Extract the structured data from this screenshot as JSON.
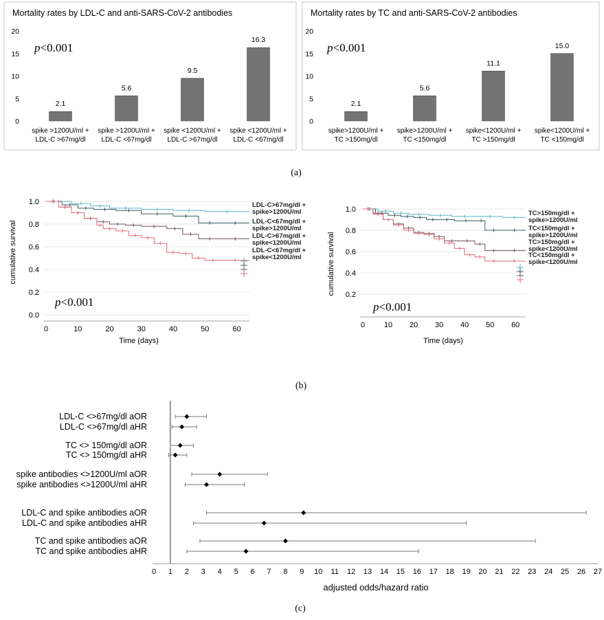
{
  "colors": {
    "bar": "#737373",
    "panel_border": "#c8c8c8",
    "axis": "#9a9a9a",
    "teal": "#5bb5c1",
    "dark": "#375a5f",
    "purple": "#6e5560",
    "pink": "#e06a7d",
    "forest": "#555555"
  },
  "panel_labels": {
    "a": "(a)",
    "b": "(b)",
    "c": "(c)"
  },
  "chart_data": [
    {
      "type": "bar",
      "title": "Mortality rates by LDL-C and anti-SARS-CoV-2 antibodies",
      "annotation": {
        "italic": "p",
        "rest": "<0.001"
      },
      "categories": [
        [
          "spike >1200U/ml +",
          "LDL-C >67mg/dl"
        ],
        [
          "spike >1200U/ml +",
          "LDL-C <67mg/dl"
        ],
        [
          "spike <1200U/ml +",
          "LDL-C >67mg/dl"
        ],
        [
          "spike <1200U/ml +",
          "LDL-C <67mg/dl"
        ]
      ],
      "values": [
        2.1,
        5.6,
        9.5,
        16.3
      ],
      "labels": [
        "2.1",
        "5.6",
        "9.5",
        "16.3"
      ],
      "ylim": [
        0,
        20
      ],
      "yticks": [
        0,
        5,
        10,
        15,
        20
      ]
    },
    {
      "type": "bar",
      "title": "Mortality rates by TC and anti-SARS-CoV-2 antibodies",
      "annotation": {
        "italic": "p",
        "rest": "<0.001"
      },
      "categories": [
        [
          "spike>1200U/ml +",
          "TC >150mg/dl"
        ],
        [
          "spike>1200U/ml +",
          "TC <150mg/dl"
        ],
        [
          "spike<1200U/ml +",
          "TC >150mg/dl"
        ],
        [
          "spike<1200U/ml +",
          "TC <150mg/dl"
        ]
      ],
      "values": [
        2.1,
        5.6,
        11.1,
        15.0
      ],
      "labels": [
        "2.1",
        "5.6",
        "11.1",
        "15.0"
      ],
      "ylim": [
        0,
        20
      ],
      "yticks": [
        0,
        5,
        10,
        15,
        20
      ]
    },
    {
      "type": "line",
      "xlabel": "Time (days)",
      "ylabel": "cumulative survival",
      "annotation": {
        "italic": "p",
        "rest": "<0.001"
      },
      "xlim": [
        0,
        64
      ],
      "ylim": [
        0,
        1.0
      ],
      "xticks": [
        0,
        10,
        20,
        30,
        40,
        50,
        60
      ],
      "yticks": [
        0.0,
        0.2,
        0.4,
        0.6,
        0.8,
        1.0
      ],
      "ytick_labels": [
        "0.0",
        "0.2",
        "0.4",
        "0.6",
        "0.8",
        "1.0"
      ],
      "series": [
        {
          "name": "LDL-C>67mg/dl + spike>1200U/ml",
          "label_lines": [
            "LDL-C>67mg/dl +",
            "spike>1200U/ml"
          ],
          "color": "#5bb5c1",
          "x": [
            0,
            8,
            14,
            20,
            30,
            40,
            50,
            64
          ],
          "y": [
            1.0,
            0.98,
            0.96,
            0.94,
            0.93,
            0.92,
            0.91,
            0.91
          ]
        },
        {
          "name": "LDL-C<67mg/dl + spike>1200U/ml",
          "label_lines": [
            "LDL-C<67mg/dl +",
            "spike>1200U/ml"
          ],
          "color": "#375a5f",
          "x": [
            0,
            5,
            10,
            15,
            22,
            30,
            40,
            48,
            55,
            64
          ],
          "y": [
            1.0,
            0.97,
            0.94,
            0.93,
            0.92,
            0.89,
            0.87,
            0.81,
            0.81,
            0.81
          ]
        },
        {
          "name": "LDL-C>67mg/dl + spike<1200U/ml",
          "label_lines": [
            "LDL-C>67mg/dl +",
            "spike<1200U/ml"
          ],
          "color": "#6e5560",
          "x": [
            0,
            4,
            8,
            12,
            16,
            20,
            25,
            30,
            38,
            43,
            48,
            55,
            64
          ],
          "y": [
            1.0,
            0.95,
            0.9,
            0.85,
            0.82,
            0.8,
            0.79,
            0.78,
            0.76,
            0.71,
            0.67,
            0.67,
            0.67
          ]
        },
        {
          "name": "LDL-C<67mg/dl + spike<1200U/ml",
          "label_lines": [
            "LDL-C<67mg/dl +",
            "spike<1200U/ml"
          ],
          "color": "#e06a7d",
          "x": [
            0,
            4,
            8,
            12,
            16,
            18,
            22,
            26,
            30,
            34,
            38,
            42,
            46,
            50,
            55,
            64
          ],
          "y": [
            1.0,
            0.95,
            0.9,
            0.85,
            0.79,
            0.76,
            0.74,
            0.7,
            0.68,
            0.63,
            0.55,
            0.54,
            0.5,
            0.48,
            0.48,
            0.48
          ]
        }
      ]
    },
    {
      "type": "line",
      "xlabel": "Time (days)",
      "ylabel": "cumulative survival",
      "annotation": {
        "italic": "p",
        "rest": "<0.001"
      },
      "xlim": [
        0,
        64
      ],
      "ylim": [
        0,
        1.0
      ],
      "xticks": [
        0,
        10,
        20,
        30,
        40,
        50,
        60
      ],
      "yticks": [
        0.2,
        0.4,
        0.6,
        0.8,
        1.0
      ],
      "ytick_labels": [
        "0.2",
        "0.4",
        "0.6",
        "0.8",
        "1.0"
      ],
      "series": [
        {
          "name": "TC>150mg/dl + spike>1200U/ml",
          "label_lines": [
            "TC>150mg/dl +",
            "spike>1200U/ml"
          ],
          "color": "#5bb5c1",
          "x": [
            0,
            6,
            12,
            18,
            26,
            35,
            45,
            55,
            64
          ],
          "y": [
            1.0,
            0.98,
            0.96,
            0.95,
            0.94,
            0.93,
            0.93,
            0.92,
            0.92
          ]
        },
        {
          "name": "TC<150mg/dl + spike>1200U/ml",
          "label_lines": [
            "TC<150mg/dl +",
            "spike>1200U/ml"
          ],
          "color": "#375a5f",
          "x": [
            0,
            5,
            10,
            15,
            20,
            25,
            30,
            36,
            45,
            48,
            55,
            64
          ],
          "y": [
            1.0,
            0.96,
            0.94,
            0.93,
            0.92,
            0.9,
            0.9,
            0.89,
            0.89,
            0.8,
            0.8,
            0.8
          ]
        },
        {
          "name": "TC>150mg/dl + spike<1200U/ml",
          "label_lines": [
            "TC>150mg/dl +",
            "spike<1200U/ml"
          ],
          "color": "#6e5560",
          "x": [
            0,
            4,
            8,
            12,
            16,
            20,
            24,
            28,
            32,
            38,
            44,
            48,
            55,
            64
          ],
          "y": [
            1.0,
            0.96,
            0.9,
            0.86,
            0.82,
            0.78,
            0.77,
            0.74,
            0.7,
            0.7,
            0.67,
            0.61,
            0.61,
            0.61
          ]
        },
        {
          "name": "TC<150mg/dl + spike<1200U/ml",
          "label_lines": [
            "TC<150mg/dl +",
            "spike<1200U/ml"
          ],
          "color": "#e06a7d",
          "x": [
            0,
            4,
            8,
            12,
            16,
            20,
            24,
            28,
            32,
            36,
            40,
            44,
            48,
            55,
            64
          ],
          "y": [
            1.0,
            0.95,
            0.9,
            0.85,
            0.8,
            0.77,
            0.76,
            0.72,
            0.68,
            0.63,
            0.57,
            0.55,
            0.51,
            0.51,
            0.51
          ]
        }
      ]
    },
    {
      "type": "scatter",
      "subtype": "forest",
      "xlabel": "adjusted odds/hazard ratio",
      "xlim": [
        0,
        27
      ],
      "xticks": [
        0,
        1,
        2,
        3,
        4,
        5,
        6,
        7,
        8,
        9,
        10,
        11,
        12,
        13,
        14,
        15,
        16,
        17,
        18,
        19,
        20,
        21,
        22,
        23,
        24,
        25,
        26,
        27
      ],
      "reference_line": 1,
      "rows": [
        {
          "label": "LDL-C <>67mg/dl aOR",
          "estimate": 2.0,
          "ci": [
            1.3,
            3.2
          ],
          "group": 0
        },
        {
          "label": "LDL-C <>67mg/dl aHR",
          "estimate": 1.7,
          "ci": [
            1.1,
            2.6
          ],
          "group": 0
        },
        {
          "label": "TC <> 150mg/dl aOR",
          "estimate": 1.6,
          "ci": [
            1.0,
            2.4
          ],
          "group": 1
        },
        {
          "label": "TC <> 150mg/dl aHR",
          "estimate": 1.3,
          "ci": [
            0.9,
            2.0
          ],
          "group": 1
        },
        {
          "label": "spike antibodies <>1200U/ml aOR",
          "estimate": 4.0,
          "ci": [
            2.3,
            6.9
          ],
          "group": 2
        },
        {
          "label": "spike antibodies <>1200U/ml aHR",
          "estimate": 3.2,
          "ci": [
            1.9,
            5.5
          ],
          "group": 2
        },
        {
          "label": "LDL-C and spike antibodies aOR",
          "estimate": 9.1,
          "ci": [
            3.2,
            26.3
          ],
          "group": 3
        },
        {
          "label": "LDL-C and spike antibodies aHR",
          "estimate": 6.7,
          "ci": [
            2.4,
            19.0
          ],
          "group": 3
        },
        {
          "label": "TC and spike antibodies aOR",
          "estimate": 8.0,
          "ci": [
            2.8,
            23.2
          ],
          "group": 4
        },
        {
          "label": "TC and spike antibodies aHR",
          "estimate": 5.6,
          "ci": [
            2.0,
            16.1
          ],
          "group": 4
        }
      ]
    }
  ]
}
